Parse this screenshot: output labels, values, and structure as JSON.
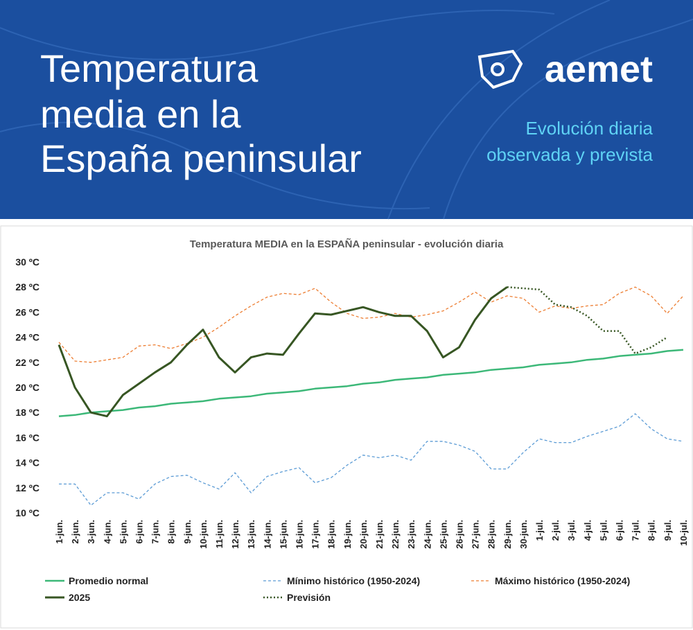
{
  "header": {
    "title_lines": [
      "Temperatura",
      "media en la",
      "España peninsular"
    ],
    "logo": "aemet",
    "subtitle_lines": [
      "Evolución diaria",
      "observada y prevista"
    ]
  },
  "chart_data": {
    "type": "line",
    "title": "Temperatura MEDIA en la ESPAÑA peninsular - evolución diaria",
    "categories": [
      "1-jun.",
      "2-jun.",
      "3-jun.",
      "4-jun.",
      "5-jun.",
      "6-jun.",
      "7-jun.",
      "8-jun.",
      "9-jun.",
      "10-jun.",
      "11-jun.",
      "12-jun.",
      "13-jun.",
      "14-jun.",
      "15-jun.",
      "16-jun.",
      "17-jun.",
      "18-jun.",
      "19-jun.",
      "20-jun.",
      "21-jun.",
      "22-jun.",
      "23-jun.",
      "24-jun.",
      "25-jun.",
      "26-jun.",
      "27-jun.",
      "28-jun.",
      "29-jun.",
      "30-jun.",
      "1-jul.",
      "2-jul.",
      "3-jul.",
      "4-jul.",
      "5-jul.",
      "6-jul.",
      "7-jul.",
      "8-jul.",
      "9-jul.",
      "10-jul."
    ],
    "ylim": [
      10,
      30
    ],
    "yticks": [
      {
        "value": 10,
        "label": "10 ºC"
      },
      {
        "value": 12,
        "label": "12 ºC"
      },
      {
        "value": 14,
        "label": "14 ºC"
      },
      {
        "value": 16,
        "label": "16 ºC"
      },
      {
        "value": 18,
        "label": "18 ºC"
      },
      {
        "value": 20,
        "label": "20 ºC"
      },
      {
        "value": 22,
        "label": "22 ºC"
      },
      {
        "value": 24,
        "label": "24 ºC"
      },
      {
        "value": 26,
        "label": "26 ºC"
      },
      {
        "value": 28,
        "label": "28 ºC"
      },
      {
        "value": 30,
        "label": "30 ºC"
      }
    ],
    "grid": false,
    "series": [
      {
        "name": "Promedio normal",
        "color": "#3cb878",
        "dash": "solid",
        "width": 2.5,
        "values": [
          17.7,
          17.8,
          18.0,
          18.1,
          18.2,
          18.4,
          18.5,
          18.7,
          18.8,
          18.9,
          19.1,
          19.2,
          19.3,
          19.5,
          19.6,
          19.7,
          19.9,
          20.0,
          20.1,
          20.3,
          20.4,
          20.6,
          20.7,
          20.8,
          21.0,
          21.1,
          21.2,
          21.4,
          21.5,
          21.6,
          21.8,
          21.9,
          22.0,
          22.2,
          22.3,
          22.5,
          22.6,
          22.7,
          22.9,
          23.0
        ]
      },
      {
        "name": "Mínimo histórico (1950-2024)",
        "color": "#5b9bd5",
        "dash": "dashed",
        "width": 1.3,
        "values": [
          12.3,
          12.3,
          10.6,
          11.6,
          11.6,
          11.1,
          12.3,
          12.9,
          13.0,
          12.4,
          11.9,
          13.2,
          11.6,
          12.9,
          13.3,
          13.6,
          12.4,
          12.8,
          13.8,
          14.6,
          14.4,
          14.6,
          14.2,
          15.7,
          15.7,
          15.4,
          14.9,
          13.5,
          13.5,
          14.8,
          15.9,
          15.6,
          15.6,
          16.1,
          16.5,
          16.9,
          17.9,
          16.7,
          15.9,
          15.7
        ]
      },
      {
        "name": "Máximo histórico (1950-2024)",
        "color": "#ed7d31",
        "dash": "dashed",
        "width": 1.3,
        "values": [
          23.6,
          22.1,
          22.0,
          22.2,
          22.4,
          23.3,
          23.4,
          23.1,
          23.5,
          24.0,
          24.8,
          25.7,
          26.5,
          27.2,
          27.5,
          27.4,
          27.9,
          26.8,
          25.9,
          25.5,
          25.6,
          25.9,
          25.6,
          25.8,
          26.1,
          26.8,
          27.6,
          26.8,
          27.3,
          27.1,
          26.0,
          26.5,
          26.3,
          26.5,
          26.6,
          27.5,
          28.0,
          27.3,
          25.9,
          27.3
        ]
      },
      {
        "name": "2025",
        "color": "#375623",
        "dash": "solid",
        "width": 3,
        "values": [
          23.4,
          20.0,
          18.0,
          17.7,
          19.4,
          20.3,
          21.2,
          22.0,
          23.4,
          24.6,
          22.4,
          21.2,
          22.4,
          22.7,
          22.6,
          24.3,
          25.9,
          25.8,
          26.1,
          26.4,
          26.0,
          25.7,
          25.7,
          24.5,
          22.4,
          23.2,
          25.4,
          27.1,
          28.0,
          null,
          null,
          null,
          null,
          null,
          null,
          null,
          null,
          null,
          null,
          null
        ]
      },
      {
        "name": "Previsión",
        "color": "#375623",
        "dash": "dotted",
        "width": 2.5,
        "values": [
          null,
          null,
          null,
          null,
          null,
          null,
          null,
          null,
          null,
          null,
          null,
          null,
          null,
          null,
          null,
          null,
          null,
          null,
          null,
          null,
          null,
          null,
          null,
          null,
          null,
          null,
          null,
          null,
          28.0,
          27.9,
          27.8,
          26.6,
          26.4,
          25.7,
          24.5,
          24.5,
          22.7,
          23.2,
          24.0,
          null
        ]
      }
    ]
  }
}
